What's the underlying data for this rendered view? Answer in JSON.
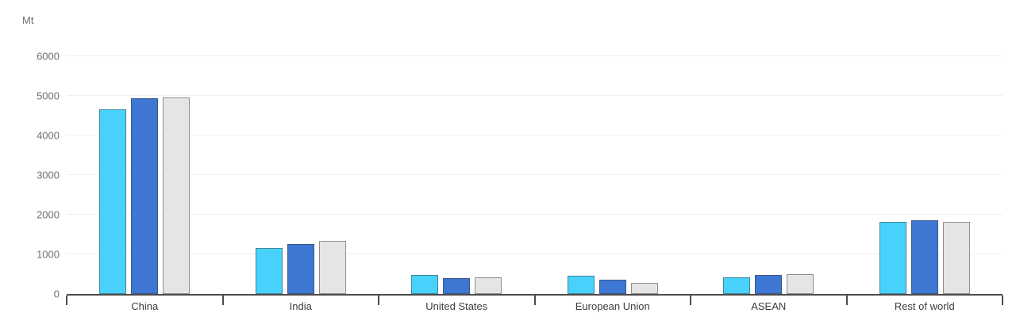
{
  "chart_data": {
    "type": "bar",
    "title": "",
    "unit": "Mt",
    "ylabel": "Mt",
    "xlabel": "",
    "ylim": [
      0,
      6000
    ],
    "ytick_interval": 1000,
    "y_ticks": [
      0,
      1000,
      2000,
      3000,
      4000,
      5000,
      6000
    ],
    "grid": "horizontal",
    "legend": "none",
    "categories": [
      "China",
      "India",
      "United States",
      "European Union",
      "ASEAN",
      "Rest of world"
    ],
    "series": [
      {
        "name": "series-1-light-blue",
        "color": "#48D2FB",
        "values": [
          4660,
          1160,
          490,
          470,
          425,
          1820
        ]
      },
      {
        "name": "series-2-blue",
        "color": "#3D77D3",
        "values": [
          4940,
          1260,
          405,
          370,
          480,
          1855
        ]
      },
      {
        "name": "series-3-grey",
        "color": "#E5E5E6",
        "values": [
          4960,
          1345,
          415,
          290,
          500,
          1820
        ]
      }
    ],
    "style": {
      "gridline_color": "#f0f0f0",
      "axis_color": "#4d4d4d",
      "tick_label_color": "#707070",
      "category_label_color": "#3d3d3d",
      "unit_label_color": "#6e6e6e",
      "background": "#ffffff"
    }
  }
}
